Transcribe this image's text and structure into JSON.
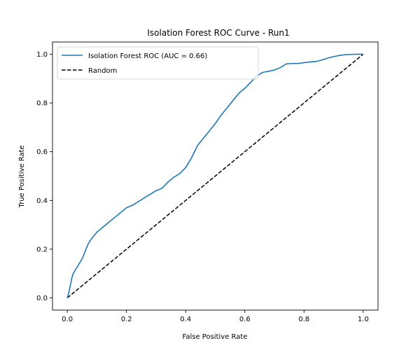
{
  "chart_data": {
    "type": "line",
    "title": "Isolation Forest ROC Curve - Run1",
    "xlabel": "False Positive Rate",
    "ylabel": "True Positive Rate",
    "xlim": [
      -0.05,
      1.05
    ],
    "ylim": [
      -0.05,
      1.05
    ],
    "xticks": [
      "0.0",
      "0.2",
      "0.4",
      "0.6",
      "0.8",
      "1.0"
    ],
    "yticks": [
      "0.0",
      "0.2",
      "0.4",
      "0.6",
      "0.8",
      "1.0"
    ],
    "grid": false,
    "legend_position": "top-left",
    "series": [
      {
        "name": "Isolation Forest ROC (AUC = 0.66)",
        "color": "#1f77b4",
        "style": "solid",
        "x": [
          0.0,
          0.005,
          0.01,
          0.015,
          0.02,
          0.03,
          0.04,
          0.05,
          0.06,
          0.07,
          0.08,
          0.1,
          0.12,
          0.14,
          0.16,
          0.18,
          0.2,
          0.22,
          0.24,
          0.26,
          0.28,
          0.3,
          0.32,
          0.34,
          0.36,
          0.38,
          0.4,
          0.42,
          0.44,
          0.46,
          0.48,
          0.5,
          0.52,
          0.54,
          0.56,
          0.58,
          0.6,
          0.62,
          0.64,
          0.66,
          0.68,
          0.7,
          0.72,
          0.74,
          0.76,
          0.78,
          0.8,
          0.82,
          0.84,
          0.86,
          0.88,
          0.9,
          0.92,
          0.94,
          0.96,
          0.98,
          1.0
        ],
        "y": [
          0.0,
          0.02,
          0.05,
          0.08,
          0.1,
          0.12,
          0.14,
          0.16,
          0.19,
          0.22,
          0.24,
          0.27,
          0.29,
          0.31,
          0.33,
          0.35,
          0.37,
          0.38,
          0.395,
          0.41,
          0.425,
          0.44,
          0.45,
          0.475,
          0.495,
          0.51,
          0.535,
          0.575,
          0.625,
          0.655,
          0.685,
          0.715,
          0.75,
          0.78,
          0.81,
          0.84,
          0.86,
          0.885,
          0.91,
          0.925,
          0.93,
          0.935,
          0.945,
          0.96,
          0.962,
          0.962,
          0.965,
          0.968,
          0.97,
          0.976,
          0.984,
          0.99,
          0.995,
          0.998,
          0.999,
          1.0,
          1.0
        ]
      },
      {
        "name": "Random",
        "color": "#000000",
        "style": "dashed",
        "x": [
          0.0,
          1.0
        ],
        "y": [
          0.0,
          1.0
        ]
      }
    ]
  }
}
